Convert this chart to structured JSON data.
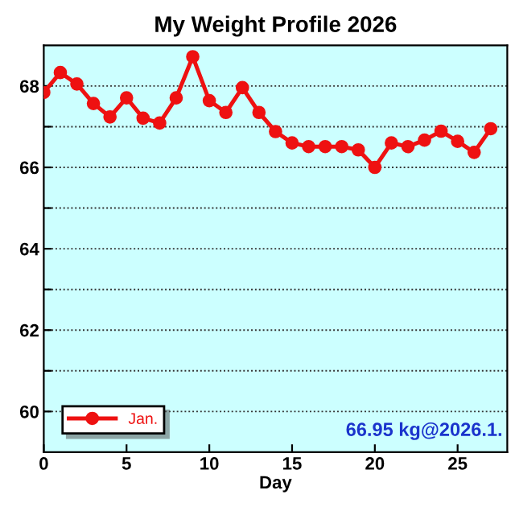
{
  "chart_data": {
    "type": "line",
    "title": "My Weight Profile 2026",
    "xlabel": "Day",
    "x": [
      0,
      1,
      2,
      3,
      4,
      5,
      6,
      7,
      8,
      9,
      10,
      11,
      12,
      13,
      14,
      15,
      16,
      17,
      18,
      19,
      20,
      21,
      22,
      23,
      24,
      25,
      26,
      27
    ],
    "series": [
      {
        "name": "Jan.",
        "color": "#ee1111",
        "values": [
          67.84,
          68.33,
          68.05,
          67.57,
          67.24,
          67.71,
          67.21,
          67.09,
          67.71,
          68.72,
          67.64,
          67.35,
          67.96,
          67.35,
          66.88,
          66.6,
          66.51,
          66.51,
          66.51,
          66.43,
          66.0,
          66.6,
          66.51,
          66.67,
          66.89,
          66.64,
          66.37,
          66.95
        ]
      }
    ],
    "xlim": [
      0,
      28
    ],
    "xticks": [
      0,
      5,
      10,
      15,
      20,
      25
    ],
    "ylim": [
      59,
      69
    ],
    "yticks": [
      60,
      {
        "value": 61,
        "label": null
      },
      62,
      {
        "value": 63,
        "label": null
      },
      64,
      {
        "value": 65,
        "label": null
      },
      66,
      {
        "value": 67,
        "label": null
      },
      68
    ],
    "grid": "y",
    "legend": "bottom left",
    "marker": "circle",
    "line_style": "solid",
    "annotations": [
      "66.95 kg@2026.1."
    ]
  }
}
